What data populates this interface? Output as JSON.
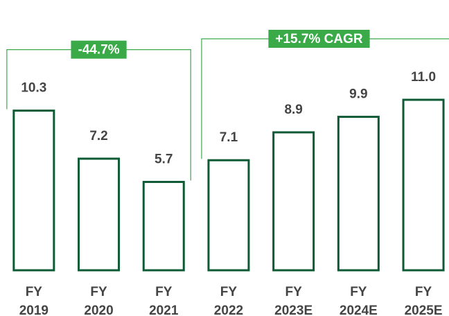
{
  "chart_data": {
    "type": "bar",
    "categories": [
      "FY 2019",
      "FY 2020",
      "FY 2021",
      "FY 2022",
      "FY 2023E",
      "FY 2024E",
      "FY 2025E"
    ],
    "values": [
      10.3,
      7.2,
      5.7,
      7.1,
      8.9,
      9.9,
      11.0
    ],
    "value_labels": [
      "10.3",
      "7.2",
      "5.7",
      "7.1",
      "8.9",
      "9.9",
      "11.0"
    ],
    "color": "#0e5a34",
    "annotations": [
      {
        "text": "-44.7%",
        "from": 0,
        "to": 2
      },
      {
        "text": "+15.7% CAGR",
        "from": 3,
        "to": 6
      }
    ],
    "annotation_color": "#3aaa48"
  }
}
